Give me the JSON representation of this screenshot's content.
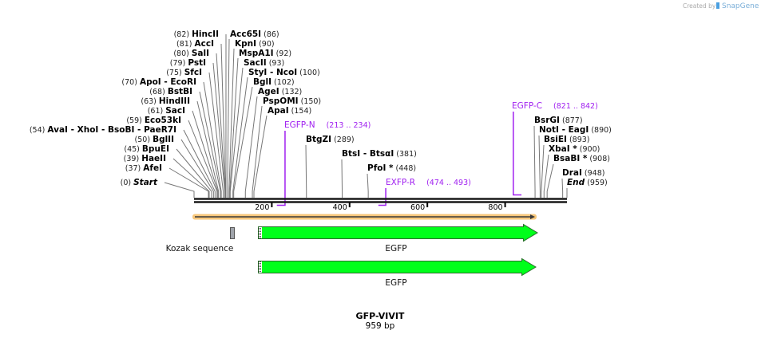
{
  "logo": {
    "created_by": "Created by",
    "brand": "SnapGene"
  },
  "map": {
    "title": "GFP-VIVIT",
    "length_label": "959 bp",
    "length_bp": 959
  },
  "ticks": [
    {
      "bp": 200,
      "label": "200"
    },
    {
      "bp": 400,
      "label": "400"
    },
    {
      "bp": 600,
      "label": "600"
    },
    {
      "bp": 800,
      "label": "800"
    }
  ],
  "sites": [
    {
      "names": [
        "Start"
      ],
      "pos": 0,
      "pos_label": "(0)",
      "italic": true
    },
    {
      "names": [
        "AfeI"
      ],
      "pos": 37,
      "pos_label": "(37)"
    },
    {
      "names": [
        "HaeII"
      ],
      "pos": 39,
      "pos_label": "(39)"
    },
    {
      "names": [
        "BpuEI"
      ],
      "pos": 45,
      "pos_label": "(45)"
    },
    {
      "names": [
        "BglII"
      ],
      "pos": 50,
      "pos_label": "(50)"
    },
    {
      "names": [
        "AvaI",
        "XhoI",
        "BsoBI",
        "PaeR7I"
      ],
      "pos": 54,
      "pos_label": "(54)"
    },
    {
      "names": [
        "Eco53kI"
      ],
      "pos": 59,
      "pos_label": "(59)"
    },
    {
      "names": [
        "SacI"
      ],
      "pos": 61,
      "pos_label": "(61)"
    },
    {
      "names": [
        "HindIII"
      ],
      "pos": 63,
      "pos_label": "(63)"
    },
    {
      "names": [
        "BstBI"
      ],
      "pos": 68,
      "pos_label": "(68)"
    },
    {
      "names": [
        "ApoI",
        "EcoRI"
      ],
      "pos": 70,
      "pos_label": "(70)"
    },
    {
      "names": [
        "SfcI"
      ],
      "pos": 75,
      "pos_label": "(75)"
    },
    {
      "names": [
        "PstI"
      ],
      "pos": 79,
      "pos_label": "(79)"
    },
    {
      "names": [
        "SalI"
      ],
      "pos": 80,
      "pos_label": "(80)"
    },
    {
      "names": [
        "AccI"
      ],
      "pos": 81,
      "pos_label": "(81)"
    },
    {
      "names": [
        "HincII"
      ],
      "pos": 82,
      "pos_label": "(82)"
    },
    {
      "names": [
        "Acc65I"
      ],
      "pos": 86,
      "pos_label": "(86)"
    },
    {
      "names": [
        "KpnI"
      ],
      "pos": 90,
      "pos_label": "(90)"
    },
    {
      "names": [
        "MspA1I"
      ],
      "pos": 92,
      "pos_label": "(92)"
    },
    {
      "names": [
        "SacII"
      ],
      "pos": 93,
      "pos_label": "(93)"
    },
    {
      "names": [
        "StyI",
        "NcoI"
      ],
      "pos": 100,
      "pos_label": "(100)"
    },
    {
      "names": [
        "BglI"
      ],
      "pos": 102,
      "pos_label": "(102)"
    },
    {
      "names": [
        "AgeI"
      ],
      "pos": 132,
      "pos_label": "(132)"
    },
    {
      "names": [
        "PspOMI"
      ],
      "pos": 150,
      "pos_label": "(150)"
    },
    {
      "names": [
        "ApaI"
      ],
      "pos": 154,
      "pos_label": "(154)"
    },
    {
      "names": [
        "BtgZI"
      ],
      "pos": 289,
      "pos_label": "(289)"
    },
    {
      "names": [
        "BtsI",
        "BtsαI"
      ],
      "pos": 381,
      "pos_label": "(381)"
    },
    {
      "names": [
        "PfoI *"
      ],
      "pos": 448,
      "pos_label": "(448)"
    },
    {
      "names": [
        "BsrGI"
      ],
      "pos": 877,
      "pos_label": "(877)"
    },
    {
      "names": [
        "NotI",
        "EagI"
      ],
      "pos": 890,
      "pos_label": "(890)"
    },
    {
      "names": [
        "BsiEI"
      ],
      "pos": 893,
      "pos_label": "(893)"
    },
    {
      "names": [
        "XbaI *"
      ],
      "pos": 900,
      "pos_label": "(900)"
    },
    {
      "names": [
        "BsaBI *"
      ],
      "pos": 908,
      "pos_label": "(908)"
    },
    {
      "names": [
        "DraI"
      ],
      "pos": 948,
      "pos_label": "(948)"
    },
    {
      "names": [
        "End"
      ],
      "pos": 959,
      "pos_label": "(959)",
      "italic": true
    }
  ],
  "primers": [
    {
      "name": "EGFP-N",
      "range_label": "(213 .. 234)",
      "start": 213,
      "end": 234,
      "strand": "bottom"
    },
    {
      "name": "EXFP-R",
      "range_label": "(474 .. 493)",
      "start": 474,
      "end": 493,
      "strand": "bottom"
    },
    {
      "name": "EGFP-C",
      "range_label": "(821 .. 842)",
      "start": 821,
      "end": 842,
      "strand": "top"
    }
  ],
  "features": [
    {
      "name": "Kozak sequence",
      "type": "misc",
      "color": "#a0a4ab"
    },
    {
      "name": "EGFP",
      "type": "cds",
      "color": "#00ff1a"
    },
    {
      "name": "EGFP",
      "type": "cds",
      "color": "#00ff1a"
    }
  ],
  "colors": {
    "primer": "#a020f0",
    "orf": "#f7c77c",
    "cds": "#00ff1a"
  }
}
